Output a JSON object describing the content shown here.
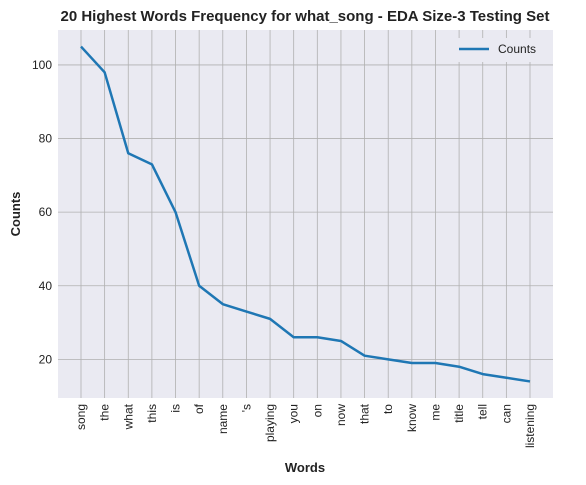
{
  "chart_data": {
    "type": "line",
    "title": "20 Highest Words Frequency for what_song - EDA Size-3 Testing Set",
    "xlabel": "Words",
    "ylabel": "Counts",
    "categories": [
      "song",
      "the",
      "what",
      "this",
      "is",
      "of",
      "name",
      "'s",
      "playing",
      "you",
      "on",
      "now",
      "that",
      "to",
      "know",
      "me",
      "title",
      "tell",
      "can",
      "listening"
    ],
    "series": [
      {
        "name": "Counts",
        "values": [
          105,
          98,
          76,
          73,
          60,
          40,
          35,
          33,
          31,
          26,
          26,
          25,
          21,
          20,
          19,
          19,
          18,
          16,
          15,
          14
        ]
      }
    ],
    "ylim": [
      9.5,
      109.5
    ],
    "yticks": [
      20,
      40,
      60,
      80,
      100
    ],
    "grid": true,
    "legend_position": "top-right",
    "colors": {
      "line": "#1f77b4",
      "background": "#eaeaf2",
      "grid": "#b0b0b0",
      "text": "#222222"
    }
  }
}
